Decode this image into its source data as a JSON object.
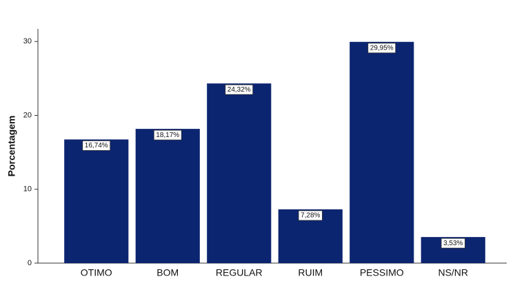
{
  "chart_data": {
    "type": "bar",
    "y_label": "Porcentagem",
    "categories": [
      "OTIMO",
      "BOM",
      "REGULAR",
      "RUIM",
      "PESSIMO",
      "NS/NR"
    ],
    "values": [
      16.74,
      18.17,
      24.32,
      7.28,
      29.95,
      3.53
    ],
    "value_labels": [
      "16,74%",
      "18,17%",
      "24,32%",
      "7,28%",
      "29,95%",
      "3,53%"
    ],
    "color": "#0c2570",
    "ylim": [
      0,
      31.7
    ],
    "yticks": [
      0,
      10,
      20,
      30
    ],
    "grid": false
  }
}
